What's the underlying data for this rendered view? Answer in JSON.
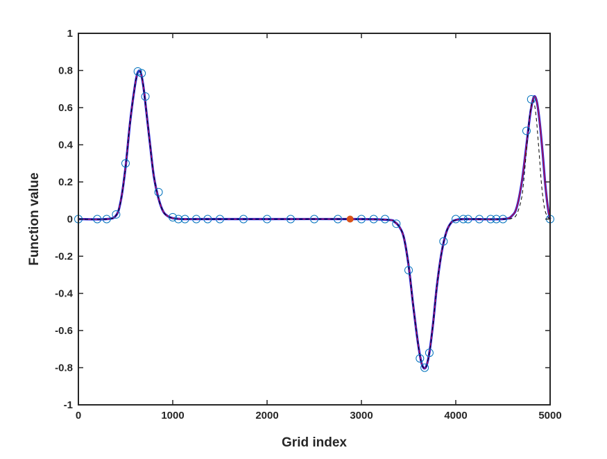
{
  "chart_data": {
    "type": "line",
    "title": "",
    "xlabel": "Grid index",
    "ylabel": "Function value",
    "xlim": [
      0,
      5000
    ],
    "ylim": [
      -1,
      1
    ],
    "xticks": [
      0,
      1000,
      2000,
      3000,
      4000,
      5000
    ],
    "xtick_labels": [
      "0",
      "1000",
      "2000",
      "3000",
      "4000",
      "5000"
    ],
    "yticks": [
      -1,
      -0.8,
      -0.6,
      -0.4,
      -0.2,
      0,
      0.2,
      0.4,
      0.6,
      0.8,
      1
    ],
    "ytick_labels": [
      "-1",
      "-0.8",
      "-0.6",
      "-0.4",
      "-0.2",
      "0",
      "0.2",
      "0.4",
      "0.6",
      "0.8",
      "1"
    ],
    "grid": false,
    "legend": "none",
    "series": [
      {
        "style": "thick-blue-line",
        "color": "#1f1fe0",
        "x": [
          0,
          300,
          400,
          450,
          500,
          550,
          600,
          630,
          660,
          690,
          720,
          760,
          800,
          850,
          900,
          950,
          1000,
          1100,
          1300,
          2000,
          3000,
          3300,
          3350,
          3400,
          3450,
          3500,
          3550,
          3600,
          3640,
          3680,
          3720,
          3760,
          3800,
          3850,
          3900,
          3950,
          4000,
          4100,
          4500,
          4600,
          4650,
          4700,
          4740,
          4780,
          4800,
          4830,
          4860,
          4890,
          4920,
          4950,
          4980,
          5000
        ],
        "y": [
          0,
          0,
          0.02,
          0.1,
          0.28,
          0.53,
          0.72,
          0.79,
          0.79,
          0.71,
          0.58,
          0.4,
          0.23,
          0.11,
          0.04,
          0.015,
          0.005,
          0,
          0,
          0,
          0,
          -0.005,
          -0.015,
          -0.04,
          -0.1,
          -0.25,
          -0.47,
          -0.67,
          -0.78,
          -0.8,
          -0.72,
          -0.56,
          -0.36,
          -0.18,
          -0.07,
          -0.02,
          -0.005,
          0,
          0,
          0.02,
          0.07,
          0.2,
          0.36,
          0.53,
          0.6,
          0.66,
          0.63,
          0.52,
          0.36,
          0.18,
          0.05,
          0
        ]
      },
      {
        "style": "thin-red-line",
        "color": "#e0141e",
        "x": [
          0,
          300,
          400,
          450,
          500,
          550,
          600,
          630,
          660,
          690,
          720,
          760,
          800,
          850,
          900,
          950,
          1000,
          1100,
          1300,
          2000,
          3000,
          3300,
          3350,
          3400,
          3450,
          3500,
          3550,
          3600,
          3640,
          3680,
          3720,
          3760,
          3800,
          3850,
          3900,
          3950,
          4000,
          4100,
          4500,
          4600,
          4650,
          4700,
          4740,
          4780,
          4800,
          4830,
          4860,
          4890,
          4920,
          4950,
          4980,
          5000
        ],
        "y": [
          0,
          0,
          0.02,
          0.1,
          0.28,
          0.53,
          0.72,
          0.79,
          0.79,
          0.71,
          0.58,
          0.4,
          0.23,
          0.11,
          0.04,
          0.015,
          0.005,
          0,
          0,
          0,
          0,
          -0.005,
          -0.015,
          -0.04,
          -0.1,
          -0.25,
          -0.47,
          -0.67,
          -0.78,
          -0.8,
          -0.72,
          -0.56,
          -0.36,
          -0.18,
          -0.07,
          -0.02,
          -0.005,
          0,
          0,
          0.02,
          0.07,
          0.2,
          0.36,
          0.53,
          0.6,
          0.66,
          0.63,
          0.52,
          0.36,
          0.18,
          0.05,
          0
        ]
      },
      {
        "style": "dashed-black-line",
        "color": "#000000",
        "x": [
          0,
          300,
          400,
          450,
          500,
          550,
          600,
          630,
          660,
          690,
          720,
          760,
          800,
          850,
          900,
          950,
          1000,
          1100,
          1300,
          2000,
          3000,
          3300,
          3350,
          3400,
          3450,
          3500,
          3550,
          3600,
          3640,
          3680,
          3720,
          3760,
          3800,
          3850,
          3900,
          3950,
          4000,
          4100,
          4500,
          4600,
          4650,
          4700,
          4730,
          4760,
          4790,
          4820,
          4850,
          4880,
          4910,
          4940,
          4970,
          5000
        ],
        "y": [
          0,
          0,
          0.02,
          0.1,
          0.28,
          0.53,
          0.72,
          0.79,
          0.79,
          0.71,
          0.58,
          0.4,
          0.23,
          0.11,
          0.04,
          0.015,
          0.005,
          0,
          0,
          0,
          0,
          -0.005,
          -0.015,
          -0.04,
          -0.1,
          -0.25,
          -0.47,
          -0.67,
          -0.78,
          -0.8,
          -0.72,
          -0.56,
          -0.36,
          -0.18,
          -0.07,
          -0.02,
          -0.005,
          0,
          0,
          0.005,
          0.03,
          0.12,
          0.26,
          0.43,
          0.58,
          0.64,
          0.56,
          0.38,
          0.18,
          0.06,
          0.015,
          0
        ]
      },
      {
        "style": "open-circle-markers",
        "color": "#0072bd",
        "x": [
          0,
          200,
          300,
          400,
          500,
          630,
          670,
          710,
          850,
          1000,
          1060,
          1130,
          1250,
          1370,
          1500,
          1750,
          2000,
          2250,
          2500,
          2750,
          3000,
          3130,
          3250,
          3370,
          3500,
          3620,
          3670,
          3720,
          3870,
          4000,
          4080,
          4130,
          4250,
          4370,
          4430,
          4500,
          4750,
          4800,
          5000
        ],
        "y": [
          0,
          0,
          0,
          0.025,
          0.3,
          0.795,
          0.785,
          0.66,
          0.145,
          0.01,
          0,
          0,
          0,
          0,
          0,
          0,
          0,
          0,
          0,
          0,
          0,
          0,
          0,
          -0.025,
          -0.275,
          -0.75,
          -0.8,
          -0.72,
          -0.12,
          0,
          0,
          0,
          0,
          0,
          0,
          0,
          0.475,
          0.645,
          0
        ]
      },
      {
        "style": "filled-orange-marker",
        "color": "#d95319",
        "x": [
          2880
        ],
        "y": [
          0
        ]
      }
    ]
  }
}
